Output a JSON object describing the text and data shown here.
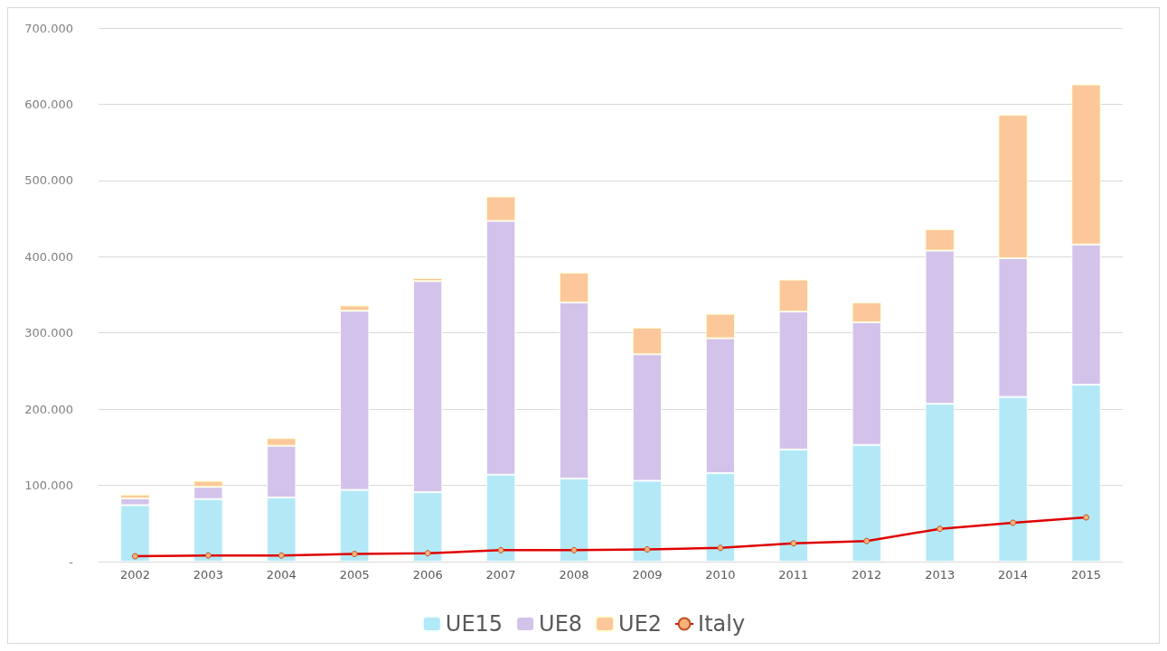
{
  "chart_data": {
    "type": "bar",
    "stacked": true,
    "categories": [
      "2002",
      "2003",
      "2004",
      "2005",
      "2006",
      "2007",
      "2008",
      "2009",
      "2010",
      "2011",
      "2012",
      "2013",
      "2014",
      "2015"
    ],
    "series": [
      {
        "name": "UE15",
        "color": "#b3e8f7",
        "values": [
          74000,
          82000,
          84000,
          94000,
          91000,
          114000,
          109000,
          106000,
          116000,
          147000,
          153000,
          207000,
          216000,
          232000
        ]
      },
      {
        "name": "UE8",
        "color": "#d3c2ea",
        "values": [
          9000,
          16000,
          68000,
          235000,
          277000,
          333000,
          231000,
          166000,
          177000,
          181000,
          161000,
          201000,
          182000,
          184000
        ]
      },
      {
        "name": "UE2",
        "color": "#fbc79b",
        "values": [
          5000,
          8000,
          10000,
          7000,
          4000,
          32000,
          39000,
          35000,
          32000,
          42000,
          26000,
          28000,
          188000,
          210000
        ]
      },
      {
        "name": "Italy",
        "type": "line",
        "color": "#e00000",
        "marker": "circle",
        "values": [
          7000,
          8000,
          8000,
          10000,
          11000,
          15000,
          15000,
          16000,
          18000,
          24000,
          27000,
          43000,
          51000,
          58000
        ]
      }
    ],
    "ylim": [
      0,
      700000
    ],
    "yticks": [
      {
        "value": 0,
        "label": "-"
      },
      {
        "value": 100000,
        "label": "100.000"
      },
      {
        "value": 200000,
        "label": "200.000"
      },
      {
        "value": 300000,
        "label": "300.000"
      },
      {
        "value": 400000,
        "label": "400.000"
      },
      {
        "value": 500000,
        "label": "500.000"
      },
      {
        "value": 600000,
        "label": "600.000"
      },
      {
        "value": 700000,
        "label": "700.000"
      }
    ],
    "grid": "y",
    "legend": "bottom"
  }
}
